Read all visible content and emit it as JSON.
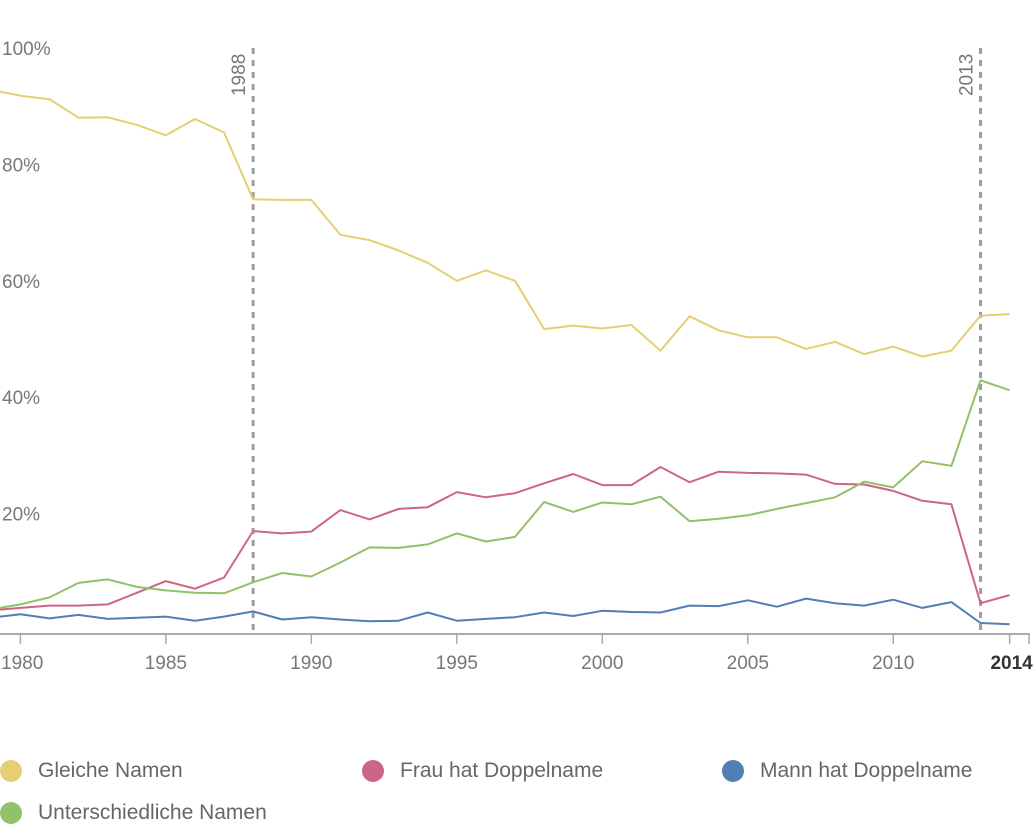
{
  "chart_data": {
    "type": "line",
    "title": "",
    "xlabel": "",
    "ylabel": "",
    "xlim": [
      1979.3,
      2014.7
    ],
    "ylim": [
      0,
      100
    ],
    "y_ticks": [
      {
        "value": 100,
        "label": "100%"
      },
      {
        "value": 80,
        "label": "80%"
      },
      {
        "value": 60,
        "label": "60%"
      },
      {
        "value": 40,
        "label": "40%"
      },
      {
        "value": 20,
        "label": "20%"
      }
    ],
    "x_ticks": [
      {
        "value": 1980,
        "label": "1980"
      },
      {
        "value": 1985,
        "label": "1985"
      },
      {
        "value": 1990,
        "label": "1990"
      },
      {
        "value": 1995,
        "label": "1995"
      },
      {
        "value": 2000,
        "label": "2000"
      },
      {
        "value": 2005,
        "label": "2005"
      },
      {
        "value": 2010,
        "label": "2010"
      },
      {
        "value": 2014,
        "label": "2014"
      }
    ],
    "markers": [
      {
        "x": 1988,
        "label": "1988"
      },
      {
        "x": 2013,
        "label": "2013"
      }
    ],
    "x": [
      1979,
      1980,
      1981,
      1982,
      1983,
      1984,
      1985,
      1986,
      1987,
      1988,
      1989,
      1990,
      1991,
      1992,
      1993,
      1994,
      1995,
      1996,
      1997,
      1998,
      1999,
      2000,
      2001,
      2002,
      2003,
      2004,
      2005,
      2006,
      2007,
      2008,
      2009,
      2010,
      2011,
      2012,
      2013,
      2014
    ],
    "series": [
      {
        "name": "Gleiche Namen",
        "color": "#e5cf73",
        "values": [
          92.5,
          91.8,
          91.2,
          88.0,
          88.1,
          86.8,
          85.0,
          87.8,
          85.5,
          74.0,
          73.9,
          73.9,
          67.9,
          67.0,
          65.2,
          63.1,
          60.0,
          61.8,
          60.0,
          51.7,
          52.3,
          51.8,
          52.4,
          48.0,
          53.9,
          51.5,
          50.3,
          50.3,
          48.3,
          49.5,
          47.4,
          48.7,
          47.0,
          48.0,
          54.0,
          54.3
        ]
      },
      {
        "name": "Frau hat Doppelname",
        "color": "#cc6686",
        "values": [
          3.5,
          3.8,
          4.2,
          4.2,
          4.4,
          6.4,
          8.4,
          7.1,
          9.0,
          17.0,
          16.6,
          16.9,
          20.6,
          19.0,
          20.8,
          21.1,
          23.7,
          22.8,
          23.5,
          25.2,
          26.8,
          24.9,
          24.9,
          28.0,
          25.4,
          27.2,
          27.0,
          26.9,
          26.7,
          25.1,
          25.0,
          23.9,
          22.2,
          21.6,
          4.6,
          6.0
        ]
      },
      {
        "name": "Mann hat Doppelname",
        "color": "#4f7fb6",
        "values": [
          2.3,
          2.7,
          2.0,
          2.6,
          1.9,
          2.1,
          2.3,
          1.6,
          2.3,
          3.2,
          1.8,
          2.2,
          1.8,
          1.5,
          1.6,
          3.0,
          1.6,
          1.9,
          2.2,
          3.0,
          2.4,
          3.3,
          3.1,
          3.0,
          4.2,
          4.1,
          5.1,
          4.0,
          5.4,
          4.6,
          4.2,
          5.2,
          3.8,
          4.8,
          1.2,
          1.0
        ]
      },
      {
        "name": "Unterschiedliche Namen",
        "color": "#93c06a",
        "values": [
          3.8,
          4.4,
          5.6,
          8.1,
          8.7,
          7.4,
          6.8,
          6.4,
          6.3,
          8.2,
          9.8,
          9.2,
          11.6,
          14.2,
          14.1,
          14.7,
          16.6,
          15.2,
          16.0,
          22.0,
          20.3,
          21.9,
          21.6,
          22.9,
          18.7,
          19.1,
          19.7,
          20.8,
          21.8,
          22.8,
          25.5,
          24.5,
          29.0,
          28.2,
          42.9,
          41.2
        ]
      }
    ],
    "legend": {
      "placement": "bottom"
    }
  }
}
